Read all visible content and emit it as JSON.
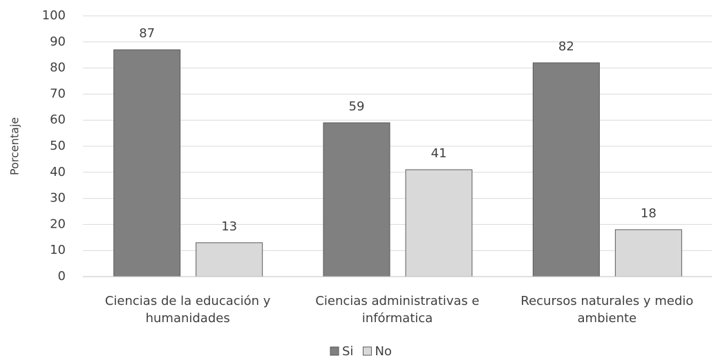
{
  "chart_data": {
    "type": "bar",
    "y_label": "Porcentaje",
    "categories": [
      "Ciencias de la educación y humanidades",
      "Ciencias administrativas e infórmatica",
      "Recursos naturales y medio ambiente"
    ],
    "series": [
      {
        "name": "Si",
        "color": "#808080",
        "values": [
          87,
          59,
          82
        ]
      },
      {
        "name": "No",
        "color": "#d9d9d9",
        "values": [
          13,
          41,
          18
        ]
      }
    ],
    "ylim": [
      0,
      100
    ],
    "yticks": [
      0,
      10,
      20,
      30,
      40,
      50,
      60,
      70,
      80,
      90,
      100
    ],
    "grid": true,
    "legend": "bottom"
  }
}
